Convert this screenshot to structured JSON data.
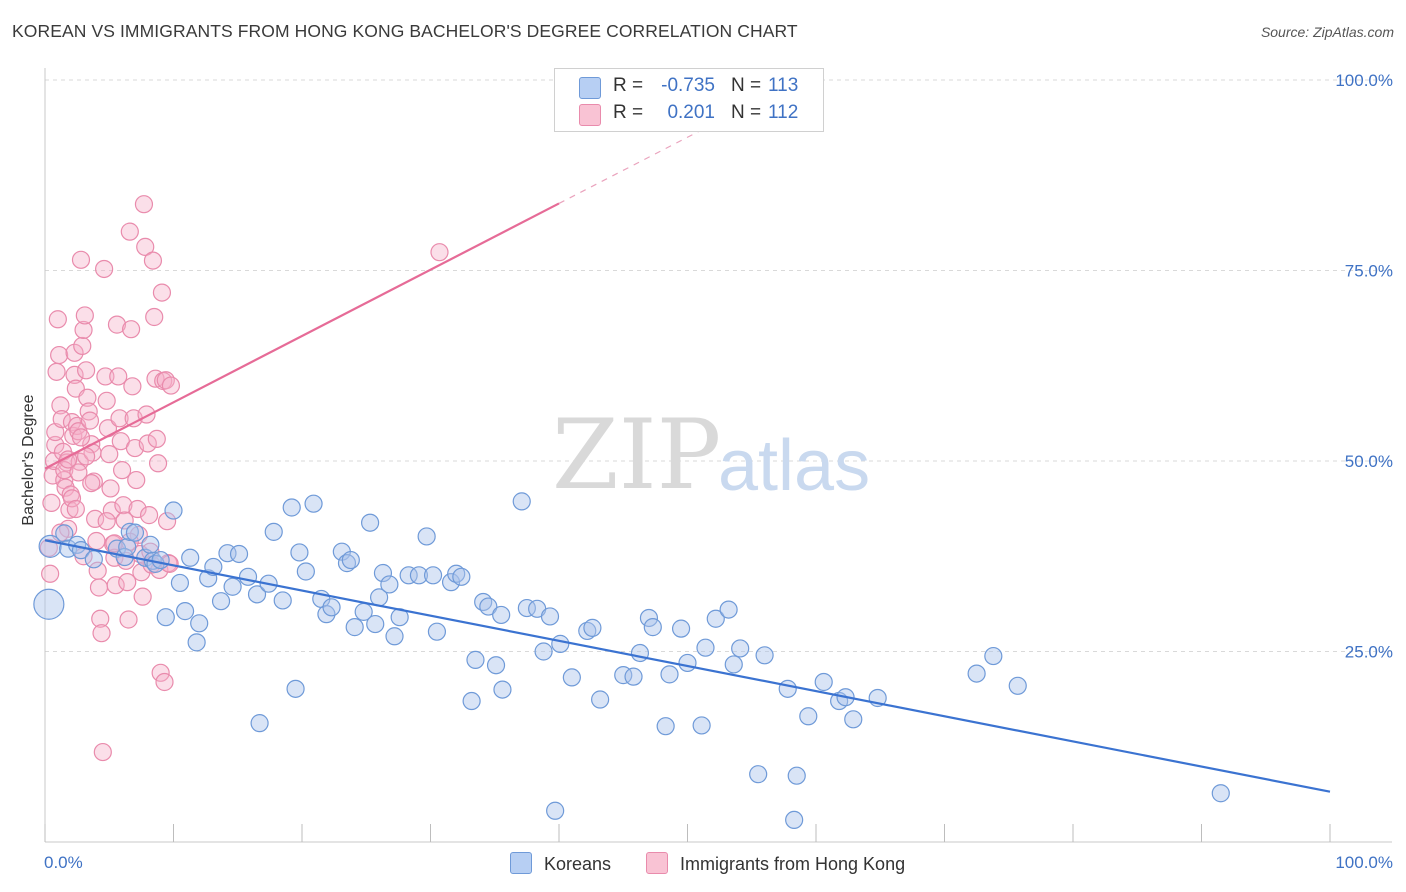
{
  "title": "KOREAN VS IMMIGRANTS FROM HONG KONG BACHELOR'S DEGREE CORRELATION CHART",
  "source": "Source: ZipAtlas.com",
  "watermark": {
    "zip": "ZIP",
    "atlas": "atlas"
  },
  "stats": {
    "rows": [
      {
        "r_label": "R =",
        "r_value": "-0.735",
        "n_label": "N =",
        "n_value": "113"
      },
      {
        "r_label": "R =",
        "r_value": "0.201",
        "n_label": "N =",
        "n_value": "112"
      }
    ]
  },
  "legend": {
    "koreans": "Koreans",
    "hongkong": "Immigrants from Hong Kong"
  },
  "colors": {
    "blue": "#3b73d1",
    "pink": "#e66b97",
    "tick": "#3f72c4"
  },
  "chart_data": {
    "type": "scatter",
    "title": "KOREAN VS IMMIGRANTS FROM HONG KONG BACHELOR'S DEGREE CORRELATION CHART",
    "xlabel": "",
    "ylabel": "Bachelor's Degree",
    "xlim": [
      0,
      100
    ],
    "ylim": [
      0,
      100
    ],
    "x_ticks": [
      "0.0%",
      "100.0%"
    ],
    "y_ticks": [
      "25.0%",
      "50.0%",
      "75.0%",
      "100.0%"
    ],
    "y_tick_values": [
      25,
      50,
      75,
      100
    ],
    "grid": true,
    "legend_position": "bottom-center",
    "series": [
      {
        "name": "Koreans",
        "color": "#3b73d1",
        "trend": {
          "x0": 0,
          "y0": 39.6,
          "x1": 100,
          "y1": 6.6
        },
        "points": [
          [
            0.4,
            38.8,
            2
          ],
          [
            0.3,
            31.2,
            3
          ],
          [
            1.5,
            40.5,
            1
          ],
          [
            1.8,
            38.5,
            1
          ],
          [
            2.5,
            39,
            1
          ],
          [
            2.8,
            38.3,
            1
          ],
          [
            3.8,
            37.1,
            1
          ],
          [
            5.6,
            38.5,
            1
          ],
          [
            6.2,
            37.4,
            1
          ],
          [
            6.4,
            38.7,
            1
          ],
          [
            6.6,
            40.7,
            1
          ],
          [
            7.0,
            40.6,
            1
          ],
          [
            7.8,
            37.3,
            1
          ],
          [
            8.2,
            39,
            1
          ],
          [
            8.4,
            36.9,
            1
          ],
          [
            8.6,
            36.5,
            1
          ],
          [
            9.0,
            37,
            1
          ],
          [
            9.4,
            29.5,
            1
          ],
          [
            10.0,
            43.5,
            1
          ],
          [
            10.5,
            34,
            1
          ],
          [
            10.9,
            30.3,
            1
          ],
          [
            11.3,
            37.3,
            1
          ],
          [
            11.8,
            26.2,
            1
          ],
          [
            12.0,
            28.7,
            1
          ],
          [
            12.7,
            34.6,
            1
          ],
          [
            13.1,
            36.1,
            1
          ],
          [
            13.7,
            31.6,
            1
          ],
          [
            14.2,
            37.9,
            1
          ],
          [
            14.6,
            33.5,
            1
          ],
          [
            15.1,
            37.8,
            1
          ],
          [
            15.8,
            34.8,
            1
          ],
          [
            16.5,
            32.5,
            1
          ],
          [
            16.7,
            15.6,
            1
          ],
          [
            17.4,
            33.9,
            1
          ],
          [
            17.8,
            40.7,
            1
          ],
          [
            18.5,
            31.7,
            1
          ],
          [
            19.2,
            43.9,
            1
          ],
          [
            19.5,
            20.1,
            1
          ],
          [
            19.8,
            38,
            1
          ],
          [
            20.3,
            35.5,
            1
          ],
          [
            20.9,
            44.4,
            1
          ],
          [
            21.5,
            31.9,
            1
          ],
          [
            21.9,
            29.9,
            1
          ],
          [
            22.3,
            30.8,
            1
          ],
          [
            23.1,
            38.1,
            1
          ],
          [
            23.5,
            36.6,
            1
          ],
          [
            23.8,
            37,
            1
          ],
          [
            24.1,
            28.2,
            1
          ],
          [
            24.8,
            30.2,
            1
          ],
          [
            25.3,
            41.9,
            1
          ],
          [
            25.7,
            28.6,
            1
          ],
          [
            26.0,
            32.1,
            1
          ],
          [
            26.3,
            35.3,
            1
          ],
          [
            26.8,
            33.8,
            1
          ],
          [
            27.2,
            27,
            1
          ],
          [
            27.6,
            29.5,
            1
          ],
          [
            28.3,
            35,
            1
          ],
          [
            29.1,
            35,
            1
          ],
          [
            29.7,
            40.1,
            1
          ],
          [
            30.2,
            35,
            1
          ],
          [
            30.5,
            27.6,
            1
          ],
          [
            31.6,
            34.1,
            1
          ],
          [
            32.0,
            35.2,
            1
          ],
          [
            32.4,
            34.8,
            1
          ],
          [
            33.2,
            18.5,
            1
          ],
          [
            33.5,
            23.9,
            1
          ],
          [
            34.1,
            31.5,
            1
          ],
          [
            34.5,
            30.9,
            1
          ],
          [
            35.1,
            23.2,
            1
          ],
          [
            35.5,
            29.8,
            1
          ],
          [
            35.6,
            20,
            1
          ],
          [
            37.1,
            44.7,
            1
          ],
          [
            37.5,
            30.7,
            1
          ],
          [
            38.3,
            30.6,
            1
          ],
          [
            38.8,
            25,
            1
          ],
          [
            39.3,
            29.6,
            1
          ],
          [
            39.7,
            4.1,
            1
          ],
          [
            40.1,
            26,
            1
          ],
          [
            41.0,
            21.6,
            1
          ],
          [
            42.2,
            27.7,
            1
          ],
          [
            42.6,
            28.1,
            1
          ],
          [
            43.2,
            18.7,
            1
          ],
          [
            45.0,
            21.9,
            1
          ],
          [
            45.8,
            21.7,
            1
          ],
          [
            46.3,
            24.8,
            1
          ],
          [
            47.0,
            29.4,
            1
          ],
          [
            47.3,
            28.2,
            1
          ],
          [
            48.3,
            15.2,
            1
          ],
          [
            48.6,
            22,
            1
          ],
          [
            49.5,
            28,
            1
          ],
          [
            50.0,
            23.5,
            1
          ],
          [
            51.1,
            15.3,
            1
          ],
          [
            51.4,
            25.5,
            1
          ],
          [
            52.2,
            29.3,
            1
          ],
          [
            53.2,
            30.5,
            1
          ],
          [
            53.6,
            23.3,
            1
          ],
          [
            54.1,
            25.4,
            1
          ],
          [
            55.5,
            8.9,
            1
          ],
          [
            56.0,
            24.5,
            1
          ],
          [
            57.8,
            20.1,
            1
          ],
          [
            58.3,
            2.9,
            1
          ],
          [
            58.5,
            8.7,
            1
          ],
          [
            59.4,
            16.5,
            1
          ],
          [
            60.6,
            21,
            1
          ],
          [
            61.8,
            18.5,
            1
          ],
          [
            62.3,
            19,
            1
          ],
          [
            62.9,
            16.1,
            1
          ],
          [
            64.8,
            18.9,
            1
          ],
          [
            72.5,
            22.1,
            1
          ],
          [
            73.8,
            24.4,
            1
          ],
          [
            75.7,
            20.5,
            1
          ],
          [
            91.5,
            6.4,
            1
          ]
        ]
      },
      {
        "name": "Immigrants from Hong Kong",
        "color": "#e66b97",
        "trend": {
          "x0": 0,
          "y0": 49.0,
          "x1": 40,
          "y1": 83.8,
          "dashed_to_x": 72,
          "dashed_to_y": 111.6
        },
        "points": [
          [
            0.3,
            38.6,
            1
          ],
          [
            0.4,
            35.2,
            1
          ],
          [
            0.5,
            44.5,
            1
          ],
          [
            0.6,
            48.1,
            1
          ],
          [
            0.7,
            50,
            1
          ],
          [
            0.8,
            52.1,
            1
          ],
          [
            0.8,
            53.8,
            1
          ],
          [
            0.9,
            61.7,
            1
          ],
          [
            1.0,
            68.6,
            1
          ],
          [
            1.1,
            63.9,
            1
          ],
          [
            1.2,
            57.3,
            1
          ],
          [
            1.3,
            55.5,
            1
          ],
          [
            1.4,
            51.2,
            1
          ],
          [
            1.5,
            47.5,
            1
          ],
          [
            1.6,
            46.5,
            1
          ],
          [
            1.7,
            49.8,
            1
          ],
          [
            1.8,
            41.1,
            1
          ],
          [
            1.9,
            43.6,
            1
          ],
          [
            2.0,
            45.6,
            1
          ],
          [
            2.1,
            55.1,
            1
          ],
          [
            2.2,
            53.3,
            1
          ],
          [
            2.3,
            61.3,
            1
          ],
          [
            2.3,
            64.2,
            1
          ],
          [
            2.4,
            59.5,
            1
          ],
          [
            2.5,
            54.6,
            1
          ],
          [
            2.6,
            53.9,
            1
          ],
          [
            2.7,
            49.9,
            1
          ],
          [
            2.8,
            76.4,
            1
          ],
          [
            2.9,
            65.1,
            1
          ],
          [
            3.0,
            67.2,
            1
          ],
          [
            3.1,
            69.1,
            1
          ],
          [
            3.2,
            61.9,
            1
          ],
          [
            3.3,
            58.3,
            1
          ],
          [
            3.4,
            56.5,
            1
          ],
          [
            3.5,
            55.3,
            1
          ],
          [
            3.6,
            52.2,
            1
          ],
          [
            3.7,
            51.1,
            1
          ],
          [
            3.8,
            47.3,
            1
          ],
          [
            3.9,
            42.4,
            1
          ],
          [
            4.0,
            39.5,
            1
          ],
          [
            4.1,
            35.6,
            1
          ],
          [
            4.2,
            33.4,
            1
          ],
          [
            4.3,
            29.3,
            1
          ],
          [
            4.4,
            27.4,
            1
          ],
          [
            4.5,
            11.8,
            1
          ],
          [
            4.6,
            75.2,
            1
          ],
          [
            4.7,
            61.1,
            1
          ],
          [
            4.8,
            57.9,
            1
          ],
          [
            4.9,
            54.3,
            1
          ],
          [
            5.0,
            50.9,
            1
          ],
          [
            5.1,
            46.4,
            1
          ],
          [
            5.2,
            43.5,
            1
          ],
          [
            5.3,
            39.1,
            1
          ],
          [
            5.4,
            37.3,
            1
          ],
          [
            5.5,
            33.7,
            1
          ],
          [
            5.6,
            67.9,
            1
          ],
          [
            5.7,
            61.1,
            1
          ],
          [
            5.8,
            55.6,
            1
          ],
          [
            5.9,
            52.6,
            1
          ],
          [
            6.0,
            48.8,
            1
          ],
          [
            6.1,
            44.2,
            1
          ],
          [
            6.2,
            42.2,
            1
          ],
          [
            6.3,
            36.9,
            1
          ],
          [
            6.4,
            34.1,
            1
          ],
          [
            6.5,
            29.2,
            1
          ],
          [
            6.6,
            80.1,
            1
          ],
          [
            6.7,
            67.3,
            1
          ],
          [
            6.8,
            59.8,
            1
          ],
          [
            6.9,
            55.6,
            1
          ],
          [
            7.0,
            51.7,
            1
          ],
          [
            7.1,
            47.5,
            1
          ],
          [
            7.2,
            43.7,
            1
          ],
          [
            7.3,
            40.3,
            1
          ],
          [
            7.4,
            37.8,
            1
          ],
          [
            7.5,
            35.4,
            1
          ],
          [
            7.6,
            32.2,
            1
          ],
          [
            7.7,
            83.7,
            1
          ],
          [
            7.8,
            78.1,
            1
          ],
          [
            7.9,
            56.1,
            1
          ],
          [
            8.0,
            52.3,
            1
          ],
          [
            8.1,
            42.9,
            1
          ],
          [
            8.2,
            38.1,
            1
          ],
          [
            8.3,
            36.4,
            1
          ],
          [
            8.4,
            76.3,
            1
          ],
          [
            8.5,
            68.9,
            1
          ],
          [
            8.6,
            60.8,
            1
          ],
          [
            8.7,
            52.9,
            1
          ],
          [
            8.8,
            49.7,
            1
          ],
          [
            8.9,
            35.7,
            1
          ],
          [
            9.0,
            22.2,
            1
          ],
          [
            9.1,
            72.1,
            1
          ],
          [
            9.2,
            60.5,
            1
          ],
          [
            9.3,
            21,
            1
          ],
          [
            9.4,
            60.6,
            1
          ],
          [
            9.5,
            42.1,
            1
          ],
          [
            9.6,
            36.6,
            1
          ],
          [
            9.7,
            36.5,
            1
          ],
          [
            9.8,
            59.9,
            1
          ],
          [
            30.7,
            77.4,
            1
          ],
          [
            1.5,
            48.8,
            1
          ],
          [
            2.1,
            45.1,
            1
          ],
          [
            3.2,
            50.6,
            1
          ],
          [
            2.8,
            53.1,
            1
          ],
          [
            1.2,
            40.6,
            1
          ],
          [
            2.6,
            48.5,
            1
          ],
          [
            3.6,
            47.1,
            1
          ],
          [
            1.8,
            50.2,
            1
          ],
          [
            2.4,
            43.7,
            1
          ],
          [
            4.8,
            42.1,
            1
          ],
          [
            5.4,
            39.2,
            1
          ],
          [
            6.6,
            39.4,
            1
          ],
          [
            3.0,
            37.5,
            1
          ]
        ]
      }
    ]
  }
}
